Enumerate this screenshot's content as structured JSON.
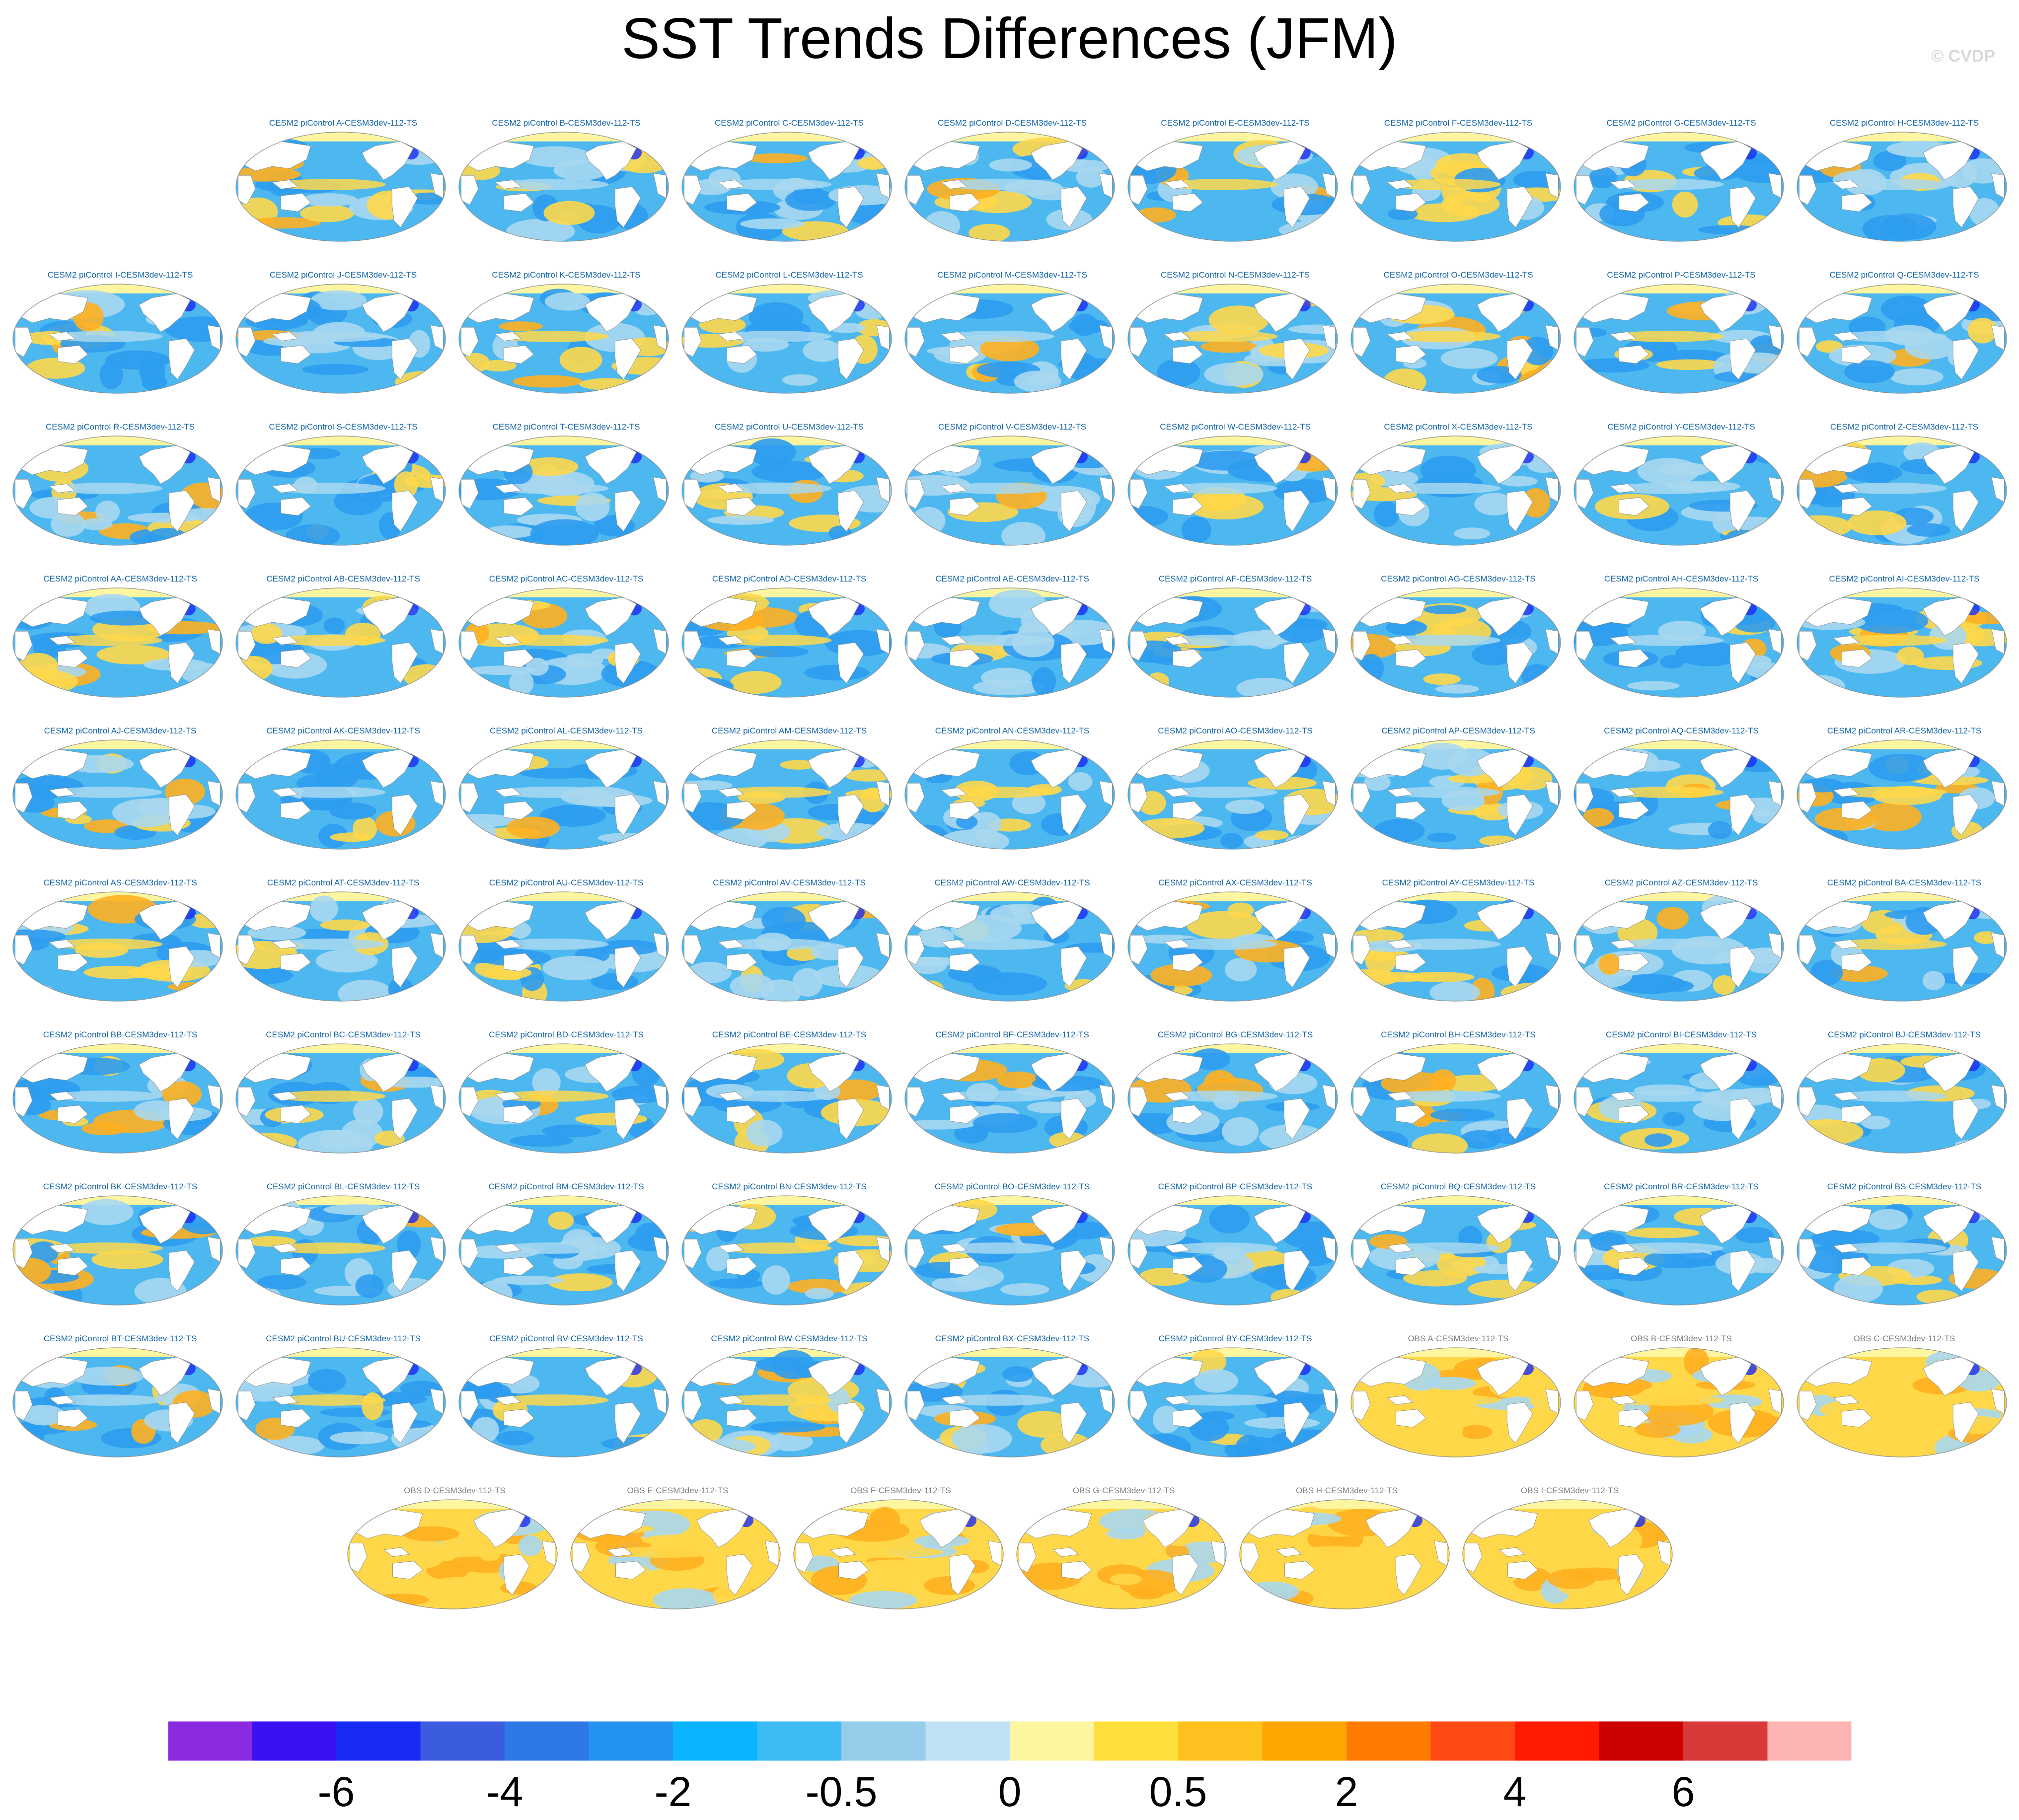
{
  "figure": {
    "title": "SST Trends Differences (JFM)",
    "watermark": "© CVDP"
  },
  "chart_data": {
    "type": "heatmap",
    "title": "SST Trends Differences (JFM)",
    "grid": false,
    "legend": "colorbar-bottom",
    "colorbar": {
      "tick_labels": [
        "-6",
        "-4",
        "-2",
        "-0.5",
        "0",
        "0.5",
        "2",
        "4",
        "6"
      ],
      "tick_boundaries": [
        2,
        4,
        6,
        8,
        10,
        12,
        14,
        16,
        18
      ],
      "colors": [
        "#8a2be2",
        "#3a10f5",
        "#1a2af5",
        "#3c5ce0",
        "#2e78e8",
        "#2494f0",
        "#0ab4ff",
        "#3cbcf2",
        "#96cdea",
        "#bfe3f5",
        "#fdf5a0",
        "#ffdf3c",
        "#ffc21e",
        "#ffa500",
        "#ff7a00",
        "#ff4a14",
        "#ff1a00",
        "#cd0000",
        "#d83a3a",
        "#ffb4b4"
      ]
    },
    "panel_rows": [
      {
        "indent": 1,
        "panels": [
          {
            "label": "CESM2 piControl A-CESM3dev-112-TS",
            "dataset": "model",
            "tone": 0.45
          },
          {
            "label": "CESM2 piControl B-CESM3dev-112-TS",
            "dataset": "model",
            "tone": 0.3
          },
          {
            "label": "CESM2 piControl C-CESM3dev-112-TS",
            "dataset": "model",
            "tone": 0.2
          },
          {
            "label": "CESM2 piControl D-CESM3dev-112-TS",
            "dataset": "model",
            "tone": 0.3
          },
          {
            "label": "CESM2 piControl E-CESM3dev-112-TS",
            "dataset": "model",
            "tone": 0.5
          },
          {
            "label": "CESM2 piControl F-CESM3dev-112-TS",
            "dataset": "model",
            "tone": 0.45
          },
          {
            "label": "CESM2 piControl G-CESM3dev-112-TS",
            "dataset": "model",
            "tone": 0.25
          },
          {
            "label": "CESM2 piControl H-CESM3dev-112-TS",
            "dataset": "model",
            "tone": 0.25
          }
        ]
      },
      {
        "indent": 0,
        "panels": [
          {
            "label": "CESM2 piControl I-CESM3dev-112-TS",
            "dataset": "model",
            "tone": 0.25
          },
          {
            "label": "CESM2 piControl J-CESM3dev-112-TS",
            "dataset": "model",
            "tone": 0.3
          },
          {
            "label": "CESM2 piControl K-CESM3dev-112-TS",
            "dataset": "model",
            "tone": 0.35
          },
          {
            "label": "CESM2 piControl L-CESM3dev-112-TS",
            "dataset": "model",
            "tone": 0.25
          },
          {
            "label": "CESM2 piControl M-CESM3dev-112-TS",
            "dataset": "model",
            "tone": 0.3
          },
          {
            "label": "CESM2 piControl N-CESM3dev-112-TS",
            "dataset": "model",
            "tone": 0.5
          },
          {
            "label": "CESM2 piControl O-CESM3dev-112-TS",
            "dataset": "model",
            "tone": 0.45
          },
          {
            "label": "CESM2 piControl P-CESM3dev-112-TS",
            "dataset": "model",
            "tone": 0.35
          },
          {
            "label": "CESM2 piControl Q-CESM3dev-112-TS",
            "dataset": "model",
            "tone": 0.25
          }
        ]
      },
      {
        "indent": 0,
        "panels": [
          {
            "label": "CESM2 piControl R-CESM3dev-112-TS",
            "dataset": "model",
            "tone": 0.25
          },
          {
            "label": "CESM2 piControl S-CESM3dev-112-TS",
            "dataset": "model",
            "tone": 0.25
          },
          {
            "label": "CESM2 piControl T-CESM3dev-112-TS",
            "dataset": "model",
            "tone": 0.25
          },
          {
            "label": "CESM2 piControl U-CESM3dev-112-TS",
            "dataset": "model",
            "tone": 0.2
          },
          {
            "label": "CESM2 piControl V-CESM3dev-112-TS",
            "dataset": "model",
            "tone": 0.3
          },
          {
            "label": "CESM2 piControl W-CESM3dev-112-TS",
            "dataset": "model",
            "tone": 0.2
          },
          {
            "label": "CESM2 piControl X-CESM3dev-112-TS",
            "dataset": "model",
            "tone": 0.2
          },
          {
            "label": "CESM2 piControl Y-CESM3dev-112-TS",
            "dataset": "model",
            "tone": 0.25
          },
          {
            "label": "CESM2 piControl Z-CESM3dev-112-TS",
            "dataset": "model",
            "tone": 0.3
          }
        ]
      },
      {
        "indent": 0,
        "panels": [
          {
            "label": "CESM2 piControl AA-CESM3dev-112-TS",
            "dataset": "model",
            "tone": 0.35
          },
          {
            "label": "CESM2 piControl AB-CESM3dev-112-TS",
            "dataset": "model",
            "tone": 0.4
          },
          {
            "label": "CESM2 piControl AC-CESM3dev-112-TS",
            "dataset": "model",
            "tone": 0.35
          },
          {
            "label": "CESM2 piControl AD-CESM3dev-112-TS",
            "dataset": "model",
            "tone": 0.35
          },
          {
            "label": "CESM2 piControl AE-CESM3dev-112-TS",
            "dataset": "model",
            "tone": 0.25
          },
          {
            "label": "CESM2 piControl AF-CESM3dev-112-TS",
            "dataset": "model",
            "tone": 0.25
          },
          {
            "label": "CESM2 piControl AG-CESM3dev-112-TS",
            "dataset": "model",
            "tone": 0.2
          },
          {
            "label": "CESM2 piControl AH-CESM3dev-112-TS",
            "dataset": "model",
            "tone": 0.25
          },
          {
            "label": "CESM2 piControl AI-CESM3dev-112-TS",
            "dataset": "model",
            "tone": 0.5
          }
        ]
      },
      {
        "indent": 0,
        "panels": [
          {
            "label": "CESM2 piControl AJ-CESM3dev-112-TS",
            "dataset": "model",
            "tone": 0.25
          },
          {
            "label": "CESM2 piControl AK-CESM3dev-112-TS",
            "dataset": "model",
            "tone": 0.2
          },
          {
            "label": "CESM2 piControl AL-CESM3dev-112-TS",
            "dataset": "model",
            "tone": 0.25
          },
          {
            "label": "CESM2 piControl AM-CESM3dev-112-TS",
            "dataset": "model",
            "tone": 0.35
          },
          {
            "label": "CESM2 piControl AN-CESM3dev-112-TS",
            "dataset": "model",
            "tone": 0.45
          },
          {
            "label": "CESM2 piControl AO-CESM3dev-112-TS",
            "dataset": "model",
            "tone": 0.3
          },
          {
            "label": "CESM2 piControl AP-CESM3dev-112-TS",
            "dataset": "model",
            "tone": 0.2
          },
          {
            "label": "CESM2 piControl AQ-CESM3dev-112-TS",
            "dataset": "model",
            "tone": 0.4
          },
          {
            "label": "CESM2 piControl AR-CESM3dev-112-TS",
            "dataset": "model",
            "tone": 0.45
          }
        ]
      },
      {
        "indent": 0,
        "panels": [
          {
            "label": "CESM2 piControl AS-CESM3dev-112-TS",
            "dataset": "model",
            "tone": 0.4
          },
          {
            "label": "CESM2 piControl AT-CESM3dev-112-TS",
            "dataset": "model",
            "tone": 0.3
          },
          {
            "label": "CESM2 piControl AU-CESM3dev-112-TS",
            "dataset": "model",
            "tone": 0.15
          },
          {
            "label": "CESM2 piControl AV-CESM3dev-112-TS",
            "dataset": "model",
            "tone": 0.25
          },
          {
            "label": "CESM2 piControl AW-CESM3dev-112-TS",
            "dataset": "model",
            "tone": 0.3
          },
          {
            "label": "CESM2 piControl AX-CESM3dev-112-TS",
            "dataset": "model",
            "tone": 0.3
          },
          {
            "label": "CESM2 piControl AY-CESM3dev-112-TS",
            "dataset": "model",
            "tone": 0.3
          },
          {
            "label": "CESM2 piControl AZ-CESM3dev-112-TS",
            "dataset": "model",
            "tone": 0.3
          },
          {
            "label": "CESM2 piControl BA-CESM3dev-112-TS",
            "dataset": "model",
            "tone": 0.35
          }
        ]
      },
      {
        "indent": 0,
        "panels": [
          {
            "label": "CESM2 piControl BB-CESM3dev-112-TS",
            "dataset": "model",
            "tone": 0.25
          },
          {
            "label": "CESM2 piControl BC-CESM3dev-112-TS",
            "dataset": "model",
            "tone": 0.35
          },
          {
            "label": "CESM2 piControl BD-CESM3dev-112-TS",
            "dataset": "model",
            "tone": 0.35
          },
          {
            "label": "CESM2 piControl BE-CESM3dev-112-TS",
            "dataset": "model",
            "tone": 0.2
          },
          {
            "label": "CESM2 piControl BF-CESM3dev-112-TS",
            "dataset": "model",
            "tone": 0.25
          },
          {
            "label": "CESM2 piControl BG-CESM3dev-112-TS",
            "dataset": "model",
            "tone": 0.3
          },
          {
            "label": "CESM2 piControl BH-CESM3dev-112-TS",
            "dataset": "model",
            "tone": 0.25
          },
          {
            "label": "CESM2 piControl BI-CESM3dev-112-TS",
            "dataset": "model",
            "tone": 0.25
          },
          {
            "label": "CESM2 piControl BJ-CESM3dev-112-TS",
            "dataset": "model",
            "tone": 0.3
          }
        ]
      },
      {
        "indent": 0,
        "panels": [
          {
            "label": "CESM2 piControl BK-CESM3dev-112-TS",
            "dataset": "model",
            "tone": 0.35
          },
          {
            "label": "CESM2 piControl BL-CESM3dev-112-TS",
            "dataset": "model",
            "tone": 0.35
          },
          {
            "label": "CESM2 piControl BM-CESM3dev-112-TS",
            "dataset": "model",
            "tone": 0.3
          },
          {
            "label": "CESM2 piControl BN-CESM3dev-112-TS",
            "dataset": "model",
            "tone": 0.35
          },
          {
            "label": "CESM2 piControl BO-CESM3dev-112-TS",
            "dataset": "model",
            "tone": 0.2
          },
          {
            "label": "CESM2 piControl BP-CESM3dev-112-TS",
            "dataset": "model",
            "tone": 0.3
          },
          {
            "label": "CESM2 piControl BQ-CESM3dev-112-TS",
            "dataset": "model",
            "tone": 0.3
          },
          {
            "label": "CESM2 piControl BR-CESM3dev-112-TS",
            "dataset": "model",
            "tone": 0.3
          },
          {
            "label": "CESM2 piControl BS-CESM3dev-112-TS",
            "dataset": "model",
            "tone": 0.25
          }
        ]
      },
      {
        "indent": 0,
        "panels": [
          {
            "label": "CESM2 piControl BT-CESM3dev-112-TS",
            "dataset": "model",
            "tone": 0.25
          },
          {
            "label": "CESM2 piControl BU-CESM3dev-112-TS",
            "dataset": "model",
            "tone": 0.35
          },
          {
            "label": "CESM2 piControl BV-CESM3dev-112-TS",
            "dataset": "model",
            "tone": 0.4
          },
          {
            "label": "CESM2 piControl BW-CESM3dev-112-TS",
            "dataset": "model",
            "tone": 0.35
          },
          {
            "label": "CESM2 piControl BX-CESM3dev-112-TS",
            "dataset": "model",
            "tone": 0.3
          },
          {
            "label": "CESM2 piControl BY-CESM3dev-112-TS",
            "dataset": "model",
            "tone": 0.25
          },
          {
            "label": "OBS A-CESM3dev-112-TS",
            "dataset": "obs",
            "tone": 0.7
          },
          {
            "label": "OBS B-CESM3dev-112-TS",
            "dataset": "obs",
            "tone": 0.75
          },
          {
            "label": "OBS C-CESM3dev-112-TS",
            "dataset": "obs",
            "tone": 0.75
          }
        ]
      },
      {
        "indent": 1.5,
        "panels": [
          {
            "label": "OBS D-CESM3dev-112-TS",
            "dataset": "obs",
            "tone": 0.75
          },
          {
            "label": "OBS E-CESM3dev-112-TS",
            "dataset": "obs",
            "tone": 0.75
          },
          {
            "label": "OBS F-CESM3dev-112-TS",
            "dataset": "obs",
            "tone": 0.75
          },
          {
            "label": "OBS G-CESM3dev-112-TS",
            "dataset": "obs",
            "tone": 0.7
          },
          {
            "label": "OBS H-CESM3dev-112-TS",
            "dataset": "obs",
            "tone": 0.75
          },
          {
            "label": "OBS I-CESM3dev-112-TS",
            "dataset": "obs",
            "tone": 0.7
          }
        ]
      }
    ]
  },
  "colors": {
    "model_label": "#1565a8",
    "obs_label": "#808080",
    "ocean_cool": "#4db8f0",
    "ocean_cool_light": "#a8d8f0",
    "ocean_warm": "#ffd84a",
    "ocean_warm_strong": "#ffb020",
    "land": "#ffffff",
    "outline": "#8c8c8c"
  }
}
